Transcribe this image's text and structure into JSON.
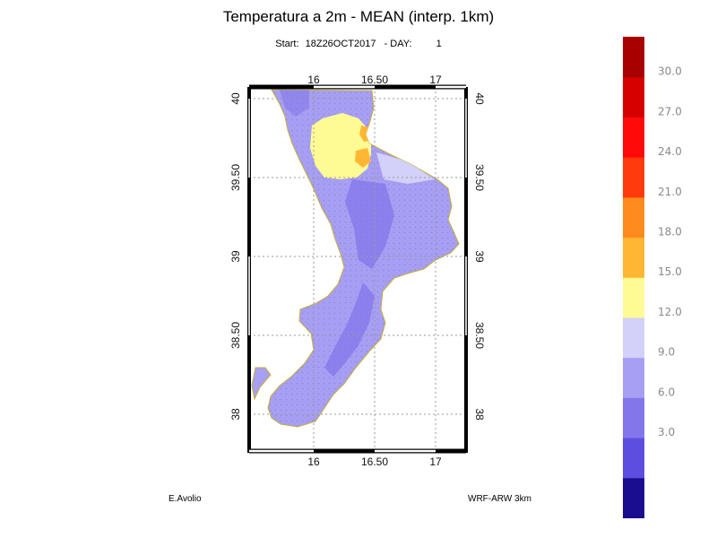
{
  "title": "Temperatura a 2m - MEAN (interp. 1km)",
  "subtitle": {
    "start_label": "Start:",
    "start_value": "18Z26OCT2017",
    "day_label": "- DAY:",
    "day_value": "1"
  },
  "map": {
    "lon_top_labels": [
      "16",
      "16.50",
      "17"
    ],
    "lon_bottom_labels": [
      "16",
      "16.50",
      "17"
    ],
    "lat_left_labels": [
      "40",
      "39.50",
      "39",
      "38.50",
      "38"
    ],
    "lat_right_labels": [
      "40",
      "39.50",
      "39",
      "38.50",
      "38"
    ],
    "gridlines": "dotted",
    "fields": [
      "9.0-12.0",
      "12.0-15.0",
      "15.0-18.0",
      "18.0-21.0"
    ]
  },
  "colorbar": {
    "labels": [
      "30.0",
      "27.0",
      "24.0",
      "21.0",
      "18.0",
      "15.0",
      "12.0",
      "9.0",
      "6.0",
      "3.0"
    ],
    "colors": [
      "#1a0d8f",
      "#5e4ee0",
      "#8276ea",
      "#a79ff2",
      "#d3d0f9",
      "#fffb94",
      "#ffb733",
      "#ff8a1e",
      "#ff3a0c",
      "#ff0a08",
      "#d60000",
      "#a80000"
    ]
  },
  "footer": {
    "left": "E.Avolio",
    "right": "WRF-ARW 3km"
  }
}
